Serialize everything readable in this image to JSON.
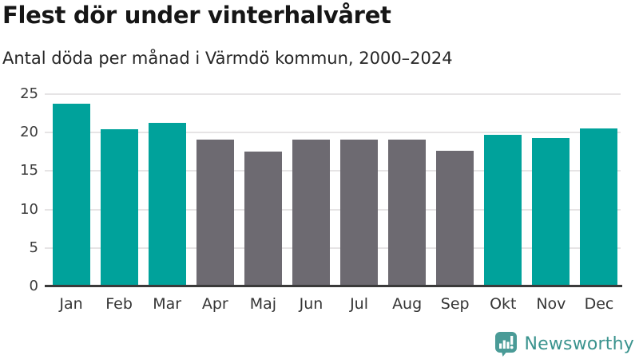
{
  "header": {
    "title": "Flest dör under vinterhalvåret",
    "subtitle": "Antal döda per månad i Värmdö kommun, 2000–2024"
  },
  "chart_data": {
    "type": "bar",
    "title": "Flest dör under vinterhalvåret",
    "subtitle": "Antal döda per månad i Värmdö kommun, 2000–2024",
    "categories": [
      "Jan",
      "Feb",
      "Mar",
      "Apr",
      "Maj",
      "Jun",
      "Jul",
      "Aug",
      "Sep",
      "Okt",
      "Nov",
      "Dec"
    ],
    "values": [
      23.8,
      20.4,
      21.3,
      19.1,
      17.5,
      19.1,
      19.1,
      19.1,
      17.6,
      19.7,
      19.3,
      20.5
    ],
    "bar_color_keys": [
      "teal",
      "teal",
      "teal",
      "gray",
      "gray",
      "gray",
      "gray",
      "gray",
      "gray",
      "teal",
      "teal",
      "teal"
    ],
    "colors": {
      "teal": "#00a29b",
      "gray": "#6d6a71"
    },
    "xlabel": "",
    "ylabel": "",
    "ylim": [
      0,
      25
    ],
    "yticks": [
      0,
      5,
      10,
      15,
      20,
      25
    ],
    "grid": "horizontal-only",
    "legend": "none",
    "highlight_meaning": "teal = winter half-year months, gray = summer half-year months"
  },
  "footer": {
    "brand": "Newsworthy",
    "brand_color": "#3a938e",
    "logo_icon": "bar-chart-speech-bubble-icon",
    "logo_color": "#4a9b97"
  }
}
